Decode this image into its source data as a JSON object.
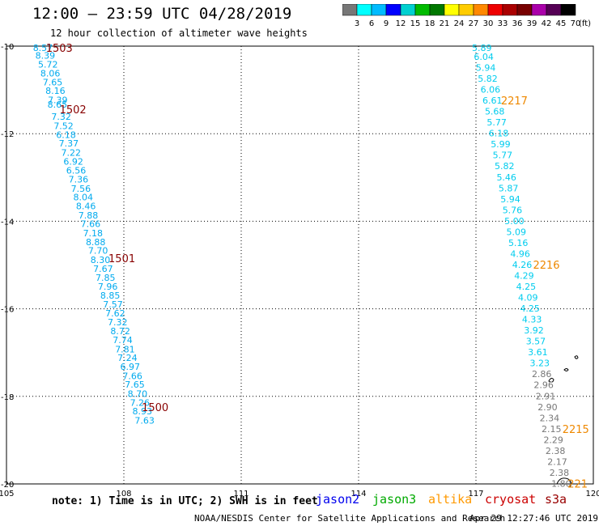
{
  "header": {
    "title": "12:00 – 23:59 UTC 04/28/2019",
    "subtitle": "12 hour collection of altimeter wave heights"
  },
  "legend": {
    "colors": [
      "#777777",
      "#00ffff",
      "#00bbff",
      "#0000ff",
      "#00d0d0",
      "#00bb00",
      "#007700",
      "#ffff00",
      "#ffcc00",
      "#ff8800",
      "#ee0000",
      "#aa0000",
      "#770000",
      "#aa00aa",
      "#550055",
      "#000000"
    ],
    "labels": [
      "3",
      "6",
      "9",
      "12",
      "15",
      "18",
      "21",
      "24",
      "27",
      "30",
      "33",
      "36",
      "39",
      "42",
      "45",
      "70"
    ],
    "unit": "(ft)"
  },
  "footer": {
    "note": "note: 1) Time is in UTC; 2) SWH is in feet",
    "satellites": [
      {
        "name": "jason2",
        "color": "#0000ee"
      },
      {
        "name": "jason3",
        "color": "#00aa00"
      },
      {
        "name": "altika",
        "color": "#ff9900"
      },
      {
        "name": "cryosat",
        "color": "#cc0000"
      },
      {
        "name": "s3a",
        "color": "#990000"
      }
    ],
    "credit": "NOAA/NESDIS Center for Satellite Applications and Research",
    "timestamp": "Apr 29 12:27:46 UTC 2019"
  },
  "chart_data": {
    "type": "scatter",
    "xlim": [
      105,
      120
    ],
    "ylim": [
      -20,
      -10
    ],
    "x_ticks": [
      105,
      108,
      111,
      114,
      117,
      120
    ],
    "y_ticks": [
      -10,
      -12,
      -14,
      -16,
      -18,
      -20
    ],
    "x_tick_labels": [
      "105",
      "108",
      "111",
      "114",
      "117",
      "120"
    ],
    "y_tick_labels": [
      "-10",
      "-12",
      "-14",
      "-16",
      "-18",
      "-20"
    ],
    "grid": true,
    "tracks": [
      {
        "name": "west track",
        "points": [
          {
            "lon": 105.93,
            "lat": -10.04,
            "swh": "8.57",
            "color": "#00aaee"
          },
          {
            "lon": 105.99,
            "lat": -10.21,
            "swh": "8.39",
            "color": "#00aaee"
          },
          {
            "lon": 106.06,
            "lat": -10.42,
            "swh": "5.72",
            "color": "#00aaee"
          },
          {
            "lon": 106.12,
            "lat": -10.62,
            "swh": "8.06",
            "color": "#00aaee"
          },
          {
            "lon": 106.18,
            "lat": -10.82,
            "swh": "7.65",
            "color": "#00aaee"
          },
          {
            "lon": 106.25,
            "lat": -11.02,
            "swh": "8.16",
            "color": "#00aaee"
          },
          {
            "lon": 106.31,
            "lat": -11.23,
            "swh": "7.39",
            "color": "#00aaee"
          },
          {
            "lon": 106.3,
            "lat": -11.33,
            "swh": "8.65",
            "color": "#00aaee"
          },
          {
            "lon": 106.4,
            "lat": -11.61,
            "swh": "7.32",
            "color": "#00aaee"
          },
          {
            "lon": 106.46,
            "lat": -11.82,
            "swh": "7.52",
            "color": "#00aaee"
          },
          {
            "lon": 106.52,
            "lat": -12.02,
            "swh": "6.18",
            "color": "#00aaee"
          },
          {
            "lon": 106.59,
            "lat": -12.22,
            "swh": "7.37",
            "color": "#00aaee"
          },
          {
            "lon": 106.65,
            "lat": -12.43,
            "swh": "7.22",
            "color": "#00aaee"
          },
          {
            "lon": 106.71,
            "lat": -12.63,
            "swh": "6.92",
            "color": "#00aaee"
          },
          {
            "lon": 106.78,
            "lat": -12.84,
            "swh": "6.56",
            "color": "#00aaee"
          },
          {
            "lon": 106.84,
            "lat": -13.04,
            "swh": "7.36",
            "color": "#00aaee"
          },
          {
            "lon": 106.9,
            "lat": -13.25,
            "swh": "7.56",
            "color": "#00aaee"
          },
          {
            "lon": 106.96,
            "lat": -13.45,
            "swh": "8.04",
            "color": "#00aaee"
          },
          {
            "lon": 107.03,
            "lat": -13.65,
            "swh": "8.46",
            "color": "#00aaee"
          },
          {
            "lon": 107.09,
            "lat": -13.86,
            "swh": "7.88",
            "color": "#00aaee"
          },
          {
            "lon": 107.15,
            "lat": -14.06,
            "swh": "7.66",
            "color": "#00aaee"
          },
          {
            "lon": 107.21,
            "lat": -14.27,
            "swh": "7.18",
            "color": "#00aaee"
          },
          {
            "lon": 107.28,
            "lat": -14.47,
            "swh": "8.88",
            "color": "#00aaee"
          },
          {
            "lon": 107.34,
            "lat": -14.67,
            "swh": "7.70",
            "color": "#00aaee"
          },
          {
            "lon": 107.4,
            "lat": -14.88,
            "swh": "8.30",
            "color": "#00aaee"
          },
          {
            "lon": 107.47,
            "lat": -15.08,
            "swh": "7.67",
            "color": "#00aaee"
          },
          {
            "lon": 107.53,
            "lat": -15.29,
            "swh": "7.85",
            "color": "#00aaee"
          },
          {
            "lon": 107.59,
            "lat": -15.49,
            "swh": "7.96",
            "color": "#00aaee"
          },
          {
            "lon": 107.65,
            "lat": -15.69,
            "swh": "8.85",
            "color": "#00aaee"
          },
          {
            "lon": 107.72,
            "lat": -15.9,
            "swh": "7.57",
            "color": "#00aaee"
          },
          {
            "lon": 107.78,
            "lat": -16.1,
            "swh": "7.62",
            "color": "#00aaee"
          },
          {
            "lon": 107.84,
            "lat": -16.3,
            "swh": "7.32",
            "color": "#00aaee"
          },
          {
            "lon": 107.91,
            "lat": -16.51,
            "swh": "8.72",
            "color": "#00aaee"
          },
          {
            "lon": 107.97,
            "lat": -16.71,
            "swh": "7.74",
            "color": "#00aaee"
          },
          {
            "lon": 108.03,
            "lat": -16.92,
            "swh": "7.81",
            "color": "#00aaee"
          },
          {
            "lon": 108.09,
            "lat": -17.12,
            "swh": "7.24",
            "color": "#00aaee"
          },
          {
            "lon": 108.16,
            "lat": -17.32,
            "swh": "6.97",
            "color": "#00aaee"
          },
          {
            "lon": 108.22,
            "lat": -17.53,
            "swh": "7.66",
            "color": "#00aaee"
          },
          {
            "lon": 108.28,
            "lat": -17.73,
            "swh": "7.65",
            "color": "#00aaee"
          },
          {
            "lon": 108.35,
            "lat": -17.94,
            "swh": "8.70",
            "color": "#00aaee"
          },
          {
            "lon": 108.41,
            "lat": -18.14,
            "swh": "7.26",
            "color": "#00aaee"
          },
          {
            "lon": 108.47,
            "lat": -18.34,
            "swh": "8.93",
            "color": "#00aaee"
          },
          {
            "lon": 108.53,
            "lat": -18.55,
            "swh": "7.63",
            "color": "#00aaee"
          }
        ]
      },
      {
        "name": "east track",
        "points": [
          {
            "lon": 117.15,
            "lat": -10.04,
            "swh": "5.89",
            "color": "#00ccee"
          },
          {
            "lon": 117.2,
            "lat": -10.24,
            "swh": "6.04",
            "color": "#00ccee"
          },
          {
            "lon": 117.25,
            "lat": -10.49,
            "swh": "5.94",
            "color": "#00ccee"
          },
          {
            "lon": 117.3,
            "lat": -10.74,
            "swh": "5.82",
            "color": "#00ccee"
          },
          {
            "lon": 117.37,
            "lat": -10.99,
            "swh": "6.06",
            "color": "#00ccee"
          },
          {
            "lon": 117.42,
            "lat": -11.24,
            "swh": "6.61",
            "color": "#00ccee"
          },
          {
            "lon": 117.48,
            "lat": -11.49,
            "swh": "5.68",
            "color": "#00ccee"
          },
          {
            "lon": 117.53,
            "lat": -11.74,
            "swh": "5.77",
            "color": "#00ccee"
          },
          {
            "lon": 117.58,
            "lat": -11.99,
            "swh": "6.18",
            "color": "#00ccee"
          },
          {
            "lon": 117.63,
            "lat": -12.24,
            "swh": "5.99",
            "color": "#00ccee"
          },
          {
            "lon": 117.68,
            "lat": -12.49,
            "swh": "5.77",
            "color": "#00ccee"
          },
          {
            "lon": 117.73,
            "lat": -12.74,
            "swh": "5.82",
            "color": "#00ccee"
          },
          {
            "lon": 117.78,
            "lat": -12.99,
            "swh": "5.46",
            "color": "#00ccee"
          },
          {
            "lon": 117.83,
            "lat": -13.24,
            "swh": "5.87",
            "color": "#00ccee"
          },
          {
            "lon": 117.88,
            "lat": -13.49,
            "swh": "5.94",
            "color": "#00ccee"
          },
          {
            "lon": 117.93,
            "lat": -13.74,
            "swh": "5.76",
            "color": "#00ccee"
          },
          {
            "lon": 117.98,
            "lat": -13.99,
            "swh": "5.00",
            "color": "#00ccee"
          },
          {
            "lon": 118.03,
            "lat": -14.24,
            "swh": "5.09",
            "color": "#00ccee"
          },
          {
            "lon": 118.08,
            "lat": -14.49,
            "swh": "5.16",
            "color": "#00ccee"
          },
          {
            "lon": 118.13,
            "lat": -14.74,
            "swh": "4.96",
            "color": "#00ccee"
          },
          {
            "lon": 118.18,
            "lat": -14.99,
            "swh": "4.26",
            "color": "#00ccee"
          },
          {
            "lon": 118.23,
            "lat": -15.24,
            "swh": "4.29",
            "color": "#00ccee"
          },
          {
            "lon": 118.28,
            "lat": -15.49,
            "swh": "4.25",
            "color": "#00ccee"
          },
          {
            "lon": 118.33,
            "lat": -15.74,
            "swh": "4.09",
            "color": "#00ccee"
          },
          {
            "lon": 118.38,
            "lat": -15.99,
            "swh": "4.25",
            "color": "#00ccee"
          },
          {
            "lon": 118.43,
            "lat": -16.24,
            "swh": "4.33",
            "color": "#00ccee"
          },
          {
            "lon": 118.48,
            "lat": -16.49,
            "swh": "3.92",
            "color": "#00ccee"
          },
          {
            "lon": 118.53,
            "lat": -16.74,
            "swh": "3.57",
            "color": "#00ccee"
          },
          {
            "lon": 118.58,
            "lat": -16.99,
            "swh": "3.61",
            "color": "#00ccee"
          },
          {
            "lon": 118.63,
            "lat": -17.24,
            "swh": "3.23",
            "color": "#00ccee"
          },
          {
            "lon": 118.68,
            "lat": -17.49,
            "swh": "2.86",
            "color": "#777777"
          },
          {
            "lon": 118.73,
            "lat": -17.74,
            "swh": "2.96",
            "color": "#777777"
          },
          {
            "lon": 118.78,
            "lat": -17.99,
            "swh": "2.91",
            "color": "#777777"
          },
          {
            "lon": 118.83,
            "lat": -18.24,
            "swh": "2.90",
            "color": "#777777"
          },
          {
            "lon": 118.88,
            "lat": -18.49,
            "swh": "2.34",
            "color": "#777777"
          },
          {
            "lon": 118.93,
            "lat": -18.74,
            "swh": "2.15",
            "color": "#777777"
          },
          {
            "lon": 118.98,
            "lat": -18.99,
            "swh": "2.29",
            "color": "#777777"
          },
          {
            "lon": 119.03,
            "lat": -19.24,
            "swh": "2.38",
            "color": "#777777"
          },
          {
            "lon": 119.08,
            "lat": -19.49,
            "swh": "2.17",
            "color": "#777777"
          },
          {
            "lon": 119.13,
            "lat": -19.74,
            "swh": "2.38",
            "color": "#777777"
          },
          {
            "lon": 119.18,
            "lat": -19.99,
            "swh": "1.80",
            "color": "#777777"
          }
        ]
      }
    ],
    "time_labels": [
      {
        "text": "1503",
        "lon": 106.35,
        "lat": -10.04,
        "color": "#880000"
      },
      {
        "text": "1502",
        "lon": 106.7,
        "lat": -11.44,
        "color": "#880000"
      },
      {
        "text": "1501",
        "lon": 107.95,
        "lat": -14.84,
        "color": "#880000"
      },
      {
        "text": "1500",
        "lon": 108.8,
        "lat": -18.24,
        "color": "#880000"
      },
      {
        "text": "2217",
        "lon": 117.98,
        "lat": -11.24,
        "color": "#ee8800"
      },
      {
        "text": "2216",
        "lon": 118.8,
        "lat": -14.99,
        "color": "#ee8800"
      },
      {
        "text": "2215",
        "lon": 119.55,
        "lat": -18.74,
        "color": "#ee8800"
      },
      {
        "text": "221",
        "lon": 119.6,
        "lat": -19.99,
        "color": "#ee8800"
      }
    ]
  }
}
